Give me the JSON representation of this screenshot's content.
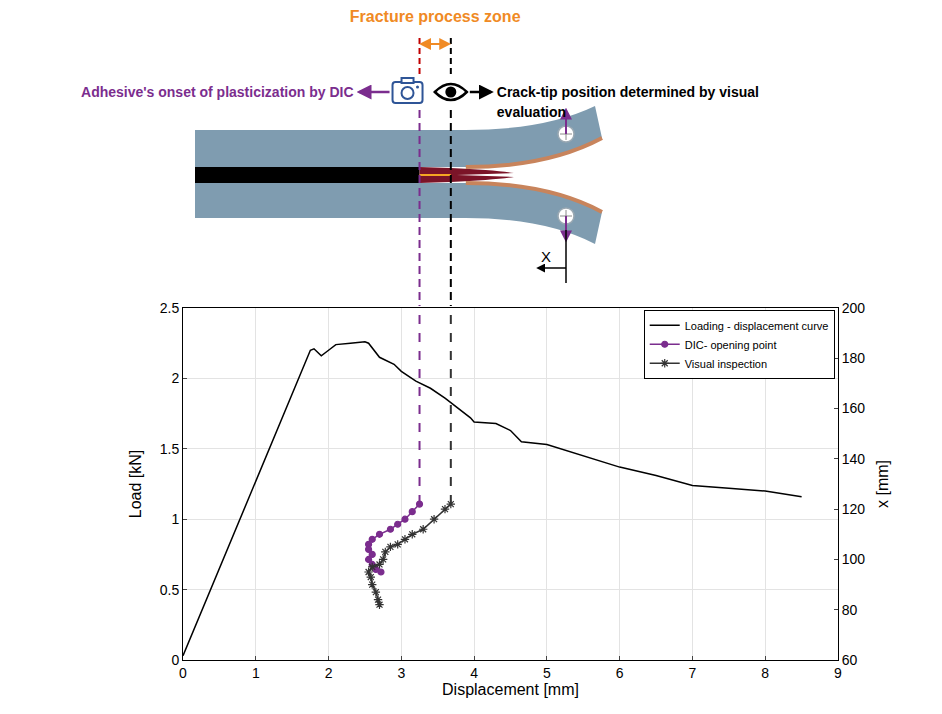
{
  "diagram": {
    "zone_label": "Fracture process zone",
    "dic_label": "Adhesive's onset of plasticization by DIC",
    "visual_label": "Crack-tip position determined by visual evaluation",
    "axis_label": "X"
  },
  "chart_data": {
    "type": "line",
    "x_label": "Displacement [mm]",
    "y_label": "Load [kN]",
    "y2_label": "x [mm]",
    "xlim": [
      0,
      9
    ],
    "xticks": [
      0,
      1,
      2,
      3,
      4,
      5,
      6,
      7,
      8,
      9
    ],
    "ylim": [
      0,
      2.5
    ],
    "yticks": [
      0,
      0.5,
      1,
      1.5,
      2,
      2.5
    ],
    "y2lim": [
      60,
      200
    ],
    "y2ticks": [
      60,
      80,
      100,
      120,
      140,
      160,
      180,
      200
    ],
    "grid": true,
    "legend": "top right",
    "series": [
      {
        "name": "Loading - displacement curve",
        "color": "#000000",
        "line_style": "solid",
        "x": [
          0,
          0.5,
          1,
          1.5,
          1.75,
          1.8,
          1.9,
          2.0,
          2.1,
          2.3,
          2.5,
          2.55,
          2.7,
          2.9,
          3.0,
          3.2,
          3.4,
          3.6,
          3.8,
          3.95,
          4.0,
          4.3,
          4.5,
          4.65,
          5.0,
          5.5,
          6.0,
          6.5,
          7.0,
          7.5,
          8.0,
          8.5
        ],
        "values": [
          0.03,
          0.65,
          1.28,
          1.9,
          2.2,
          2.21,
          2.16,
          2.2,
          2.24,
          2.25,
          2.26,
          2.25,
          2.15,
          2.1,
          2.05,
          1.98,
          1.93,
          1.86,
          1.78,
          1.72,
          1.69,
          1.68,
          1.63,
          1.55,
          1.53,
          1.45,
          1.37,
          1.31,
          1.24,
          1.22,
          1.2,
          1.16
        ]
      },
      {
        "name": "DIC- opening point",
        "color": "#7B2D8E",
        "line_style": "solid",
        "marker": "circle",
        "axis": "y2",
        "x": [
          2.72,
          2.65,
          2.6,
          2.55,
          2.6,
          2.55,
          2.55,
          2.6,
          2.7,
          2.85,
          2.95,
          3.05,
          3.15,
          3.25
        ],
        "values": [
          95,
          96,
          98,
          100,
          102,
          104,
          106,
          108,
          110,
          112,
          114,
          116,
          119,
          122
        ]
      },
      {
        "name": "Visual inspection",
        "color": "#333333",
        "line_style": "solid",
        "marker": "asterisk",
        "axis": "y2",
        "x": [
          2.7,
          2.68,
          2.65,
          2.6,
          2.58,
          2.55,
          2.6,
          2.7,
          2.75,
          2.78,
          2.85,
          2.95,
          3.05,
          3.15,
          3.3,
          3.45,
          3.6,
          3.68
        ],
        "values": [
          82,
          84,
          87,
          90,
          93,
          95,
          97,
          98,
          100,
          103,
          105,
          106,
          108,
          110,
          112,
          116,
          120,
          122
        ]
      }
    ]
  }
}
